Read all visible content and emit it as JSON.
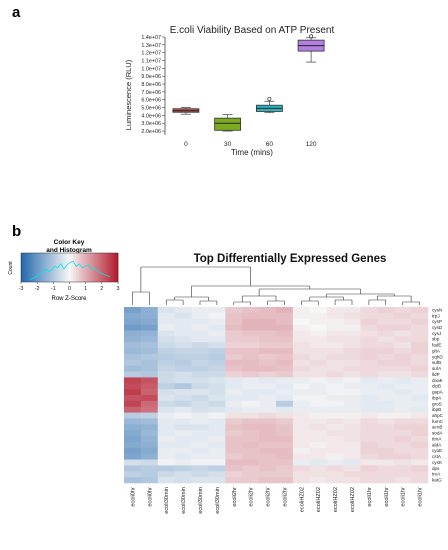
{
  "panels": {
    "a": "a",
    "b": "b"
  },
  "chart_data": [
    {
      "type": "box",
      "title": "E.coli Viability Based on ATP Present",
      "xlabel": "Time (mins)",
      "ylabel": "Luminescence (RLU)",
      "categories": [
        "0",
        "30",
        "60",
        "120"
      ],
      "ylim": [
        1500000,
        14000000
      ],
      "yticks": [
        "1.4e+07",
        "1.3e+07",
        "1.2e+07",
        "1.1e+07",
        "1.0e+07",
        "9.0e+06",
        "8.0e+06",
        "7.0e+06",
        "6.0e+06",
        "5.0e+06",
        "4.0e+06",
        "3.0e+06",
        "2.0e+06"
      ],
      "ytick_values": [
        14000000,
        13000000,
        12000000,
        11000000,
        10000000,
        9000000,
        8000000,
        7000000,
        6000000,
        5000000,
        4000000,
        3000000,
        2000000
      ],
      "boxes": [
        {
          "category": "0",
          "color": "#c0504d",
          "whisker_low": 4150000,
          "q1": 4400000,
          "median": 4600000,
          "q3": 4850000,
          "whisker_high": 5000000,
          "outliers": []
        },
        {
          "category": "30",
          "color": "#7cab1f",
          "whisker_low": 2000000,
          "q1": 2100000,
          "median": 3000000,
          "q3": 3650000,
          "whisker_high": 4100000,
          "outliers": []
        },
        {
          "category": "60",
          "color": "#26b5c0",
          "whisker_low": 4350000,
          "q1": 4500000,
          "median": 4900000,
          "q3": 5300000,
          "whisker_high": 5800000,
          "outliers": [
            6100000
          ]
        },
        {
          "category": "120",
          "color": "#b37fe0",
          "whisker_low": 10800000,
          "q1": 12200000,
          "median": 12900000,
          "q3": 13600000,
          "whisker_high": 13900000,
          "outliers": [
            14100000
          ]
        }
      ]
    },
    {
      "type": "heatmap",
      "title": "Top Differentially Expressed Genes",
      "color_key_title": "Color Key\nand Histogram",
      "color_key_title_lines": [
        "Color Key",
        "and Histogram"
      ],
      "color_key_xlabel": "Row Z-Score",
      "color_key_ylabel": "Count",
      "color_key_ticks": [
        "-3",
        "-2",
        "-1",
        "0",
        "1",
        "2",
        "3"
      ],
      "color_key_tick_values": [
        -3,
        -2,
        -1,
        0,
        1,
        2,
        3
      ],
      "low_color": "#2166ac",
      "mid_color": "#f7f7f7",
      "high_color": "#b2182b",
      "histogram_color": "#00e5ee",
      "histogram": [
        0.1,
        0.15,
        0.2,
        0.3,
        0.35,
        0.5,
        0.4,
        0.45,
        0.6,
        0.55,
        0.7,
        0.5,
        0.65,
        0.75,
        0.8,
        0.6,
        0.7,
        0.55,
        0.6,
        0.65,
        0.5,
        0.55,
        0.4,
        0.35,
        0.3,
        0.25,
        0.2
      ],
      "columns": [
        "ecoli0hr",
        "ecoli0hr",
        "ecoli30min",
        "ecoli30min",
        "ecoli30min",
        "ecoli30min",
        "ecoli2hr",
        "ecoli2hr",
        "ecoli2hr",
        "ecoli2hr",
        "ecoliHZ02",
        "ecoliHZ02",
        "ecoliHZ02",
        "ecoliHZ02",
        "ecoli1hr",
        "ecoli1hr",
        "ecoli1hr",
        "ecoli1hr"
      ],
      "rows": [
        "cysN",
        "trpJ",
        "cysP",
        "cysD",
        "cysJ",
        "sbp",
        "fadE",
        "gltA",
        "yqhD",
        "sufB",
        "sufA",
        "lldP",
        "dnaK",
        "clpB",
        "gapA",
        "ibpA",
        "groS",
        "ibpB",
        "ahpC",
        "fumC",
        "acnB",
        "sodA",
        "ttmA",
        "aldA",
        "cyoE",
        "cstA",
        "cysK",
        "dps",
        "trxA",
        "katG"
      ],
      "row_zscores": [
        [
          -1.8,
          -1.5,
          -0.4,
          -0.3,
          -0.2,
          -0.2,
          0.6,
          0.7,
          0.8,
          0.9,
          0.1,
          0.0,
          0.2,
          0.2,
          0.4,
          0.5,
          0.4,
          0.5
        ],
        [
          -1.6,
          -1.5,
          -0.3,
          -0.4,
          -0.2,
          -0.1,
          0.7,
          0.8,
          0.8,
          0.8,
          0.1,
          0.1,
          0.2,
          0.3,
          0.4,
          0.4,
          0.5,
          0.4
        ],
        [
          -1.7,
          -1.6,
          -0.3,
          -0.3,
          -0.3,
          -0.2,
          0.7,
          0.9,
          0.9,
          0.8,
          0.0,
          0.1,
          0.1,
          0.2,
          0.5,
          0.4,
          0.4,
          0.5
        ],
        [
          -1.9,
          -1.8,
          -0.2,
          -0.3,
          -0.2,
          -0.3,
          0.8,
          0.9,
          0.9,
          0.9,
          0.1,
          0.0,
          0.1,
          0.1,
          0.4,
          0.5,
          0.5,
          0.4
        ],
        [
          -1.5,
          -1.4,
          -0.4,
          -0.3,
          -0.3,
          -0.2,
          0.6,
          0.7,
          0.7,
          0.8,
          0.2,
          0.1,
          0.2,
          0.2,
          0.3,
          0.4,
          0.3,
          0.4
        ],
        [
          -1.4,
          -1.3,
          -0.5,
          -0.4,
          -0.3,
          -0.3,
          0.6,
          0.6,
          0.7,
          0.7,
          0.2,
          0.2,
          0.3,
          0.3,
          0.4,
          0.3,
          0.4,
          0.4
        ],
        [
          -1.2,
          -1.1,
          -0.6,
          -0.5,
          -0.6,
          -0.5,
          0.5,
          0.5,
          0.6,
          0.6,
          0.3,
          0.2,
          0.2,
          0.3,
          0.4,
          0.4,
          0.3,
          0.5
        ],
        [
          -1.3,
          -1.2,
          -0.8,
          -0.7,
          -0.7,
          -0.8,
          0.7,
          0.7,
          0.8,
          0.8,
          0.3,
          0.3,
          0.3,
          0.4,
          0.5,
          0.5,
          0.4,
          0.5
        ],
        [
          -1.1,
          -1.0,
          -0.9,
          -0.8,
          -0.8,
          -0.9,
          0.6,
          0.7,
          0.6,
          0.7,
          0.4,
          0.3,
          0.4,
          0.4,
          0.5,
          0.4,
          0.5,
          0.4
        ],
        [
          -1.0,
          -1.1,
          -0.8,
          -0.9,
          -0.7,
          -0.8,
          0.8,
          0.8,
          0.7,
          0.8,
          0.3,
          0.4,
          0.3,
          0.3,
          0.4,
          0.5,
          0.5,
          0.4
        ],
        [
          -1.2,
          -1.1,
          -0.7,
          -0.8,
          -0.8,
          -0.7,
          0.7,
          0.8,
          0.8,
          0.7,
          0.4,
          0.3,
          0.3,
          0.4,
          0.4,
          0.4,
          0.4,
          0.5
        ],
        [
          -0.9,
          -1.0,
          -0.6,
          -0.5,
          -0.6,
          -0.6,
          0.5,
          0.6,
          0.5,
          0.6,
          0.3,
          0.3,
          0.4,
          0.3,
          0.4,
          0.3,
          0.3,
          0.4
        ],
        [
          2.4,
          2.2,
          -0.6,
          -0.5,
          -0.5,
          -0.4,
          -0.3,
          -0.2,
          -0.3,
          -0.2,
          -0.2,
          -0.1,
          -0.2,
          -0.1,
          -0.3,
          -0.2,
          -0.3,
          -0.2
        ],
        [
          2.3,
          2.1,
          -0.8,
          -1.0,
          -0.6,
          -0.5,
          -0.3,
          -0.2,
          -0.2,
          -0.3,
          -0.1,
          -0.2,
          -0.1,
          -0.2,
          -0.2,
          -0.3,
          -0.2,
          -0.2
        ],
        [
          2.5,
          2.0,
          -0.5,
          -0.4,
          -0.4,
          -0.5,
          -0.2,
          -0.3,
          -0.3,
          -0.2,
          -0.2,
          -0.2,
          -0.1,
          -0.1,
          -0.2,
          -0.2,
          -0.3,
          -0.2
        ],
        [
          2.2,
          2.3,
          -0.4,
          -0.5,
          -0.6,
          -0.4,
          -0.3,
          -0.3,
          -0.2,
          -0.3,
          -0.1,
          -0.1,
          -0.2,
          -0.2,
          -0.3,
          -0.2,
          -0.2,
          -0.3
        ],
        [
          2.4,
          1.9,
          -0.6,
          -0.7,
          -0.5,
          -0.6,
          -0.2,
          -0.1,
          -0.2,
          -0.9,
          -0.2,
          -0.1,
          -0.1,
          -0.2,
          -0.3,
          -0.3,
          -0.2,
          -0.2
        ],
        [
          2.0,
          1.8,
          -0.4,
          -0.3,
          -0.5,
          -0.4,
          -0.3,
          -0.2,
          -0.2,
          -0.3,
          -0.2,
          -0.2,
          -0.2,
          -0.2,
          -0.3,
          -0.3,
          -0.2,
          -0.3
        ],
        [
          -0.9,
          -0.8,
          -0.2,
          -0.1,
          -0.2,
          -0.1,
          0.3,
          0.3,
          0.4,
          0.3,
          0.2,
          0.1,
          0.1,
          0.1,
          0.2,
          0.1,
          0.1,
          0.2
        ],
        [
          -1.3,
          -1.2,
          -0.3,
          -0.3,
          -0.2,
          -0.3,
          0.6,
          0.7,
          0.7,
          0.6,
          0.2,
          0.2,
          0.3,
          0.2,
          0.4,
          0.3,
          0.4,
          0.4
        ],
        [
          -1.5,
          -1.4,
          -0.3,
          -0.4,
          -0.4,
          -0.3,
          0.7,
          0.8,
          0.8,
          0.7,
          0.2,
          0.3,
          0.2,
          0.3,
          0.4,
          0.4,
          0.5,
          0.5
        ],
        [
          -1.6,
          -1.3,
          -0.3,
          -0.2,
          -0.3,
          -0.3,
          0.6,
          0.7,
          0.8,
          0.7,
          0.2,
          0.2,
          0.3,
          0.3,
          0.4,
          0.4,
          0.4,
          0.5
        ],
        [
          -1.7,
          -1.4,
          -0.2,
          -0.3,
          -0.3,
          -0.2,
          0.7,
          0.7,
          0.8,
          0.8,
          0.2,
          0.2,
          0.2,
          0.3,
          0.4,
          0.4,
          0.5,
          0.4
        ],
        [
          -1.6,
          -1.5,
          -0.3,
          -0.3,
          -0.2,
          -0.3,
          0.7,
          0.8,
          0.7,
          0.7,
          0.2,
          0.1,
          0.2,
          0.2,
          0.5,
          0.4,
          0.4,
          0.5
        ],
        [
          -1.8,
          -1.6,
          -0.2,
          -0.2,
          -0.3,
          -0.2,
          0.7,
          0.7,
          0.8,
          0.8,
          0.1,
          0.2,
          0.2,
          0.2,
          0.5,
          0.5,
          0.4,
          0.4
        ],
        [
          -1.7,
          -1.5,
          -0.2,
          -0.3,
          -0.2,
          -0.2,
          0.6,
          0.7,
          0.7,
          0.8,
          0.2,
          0.2,
          0.1,
          0.2,
          0.4,
          0.5,
          0.5,
          0.4
        ],
        [
          -0.5,
          -0.6,
          -0.1,
          -0.2,
          -0.1,
          -0.1,
          0.8,
          0.8,
          0.7,
          0.7,
          -0.2,
          -0.3,
          -0.2,
          -0.3,
          0.2,
          0.2,
          0.3,
          0.2
        ],
        [
          -1.0,
          -0.9,
          -0.9,
          -0.8,
          -0.7,
          -0.8,
          0.7,
          0.6,
          0.7,
          0.6,
          0.4,
          0.3,
          0.4,
          0.3,
          0.5,
          0.4,
          0.4,
          0.5
        ],
        [
          -0.8,
          -0.9,
          -0.6,
          -0.5,
          -0.6,
          -0.5,
          0.5,
          0.6,
          0.6,
          0.6,
          0.3,
          0.3,
          0.3,
          0.4,
          0.4,
          0.4,
          0.4,
          0.4
        ],
        [
          -1.1,
          -1.0,
          -0.4,
          -0.5,
          -0.4,
          -0.4,
          0.6,
          0.6,
          0.7,
          0.7,
          0.3,
          0.2,
          0.3,
          0.3,
          0.4,
          0.4,
          0.3,
          0.4
        ]
      ]
    }
  ]
}
